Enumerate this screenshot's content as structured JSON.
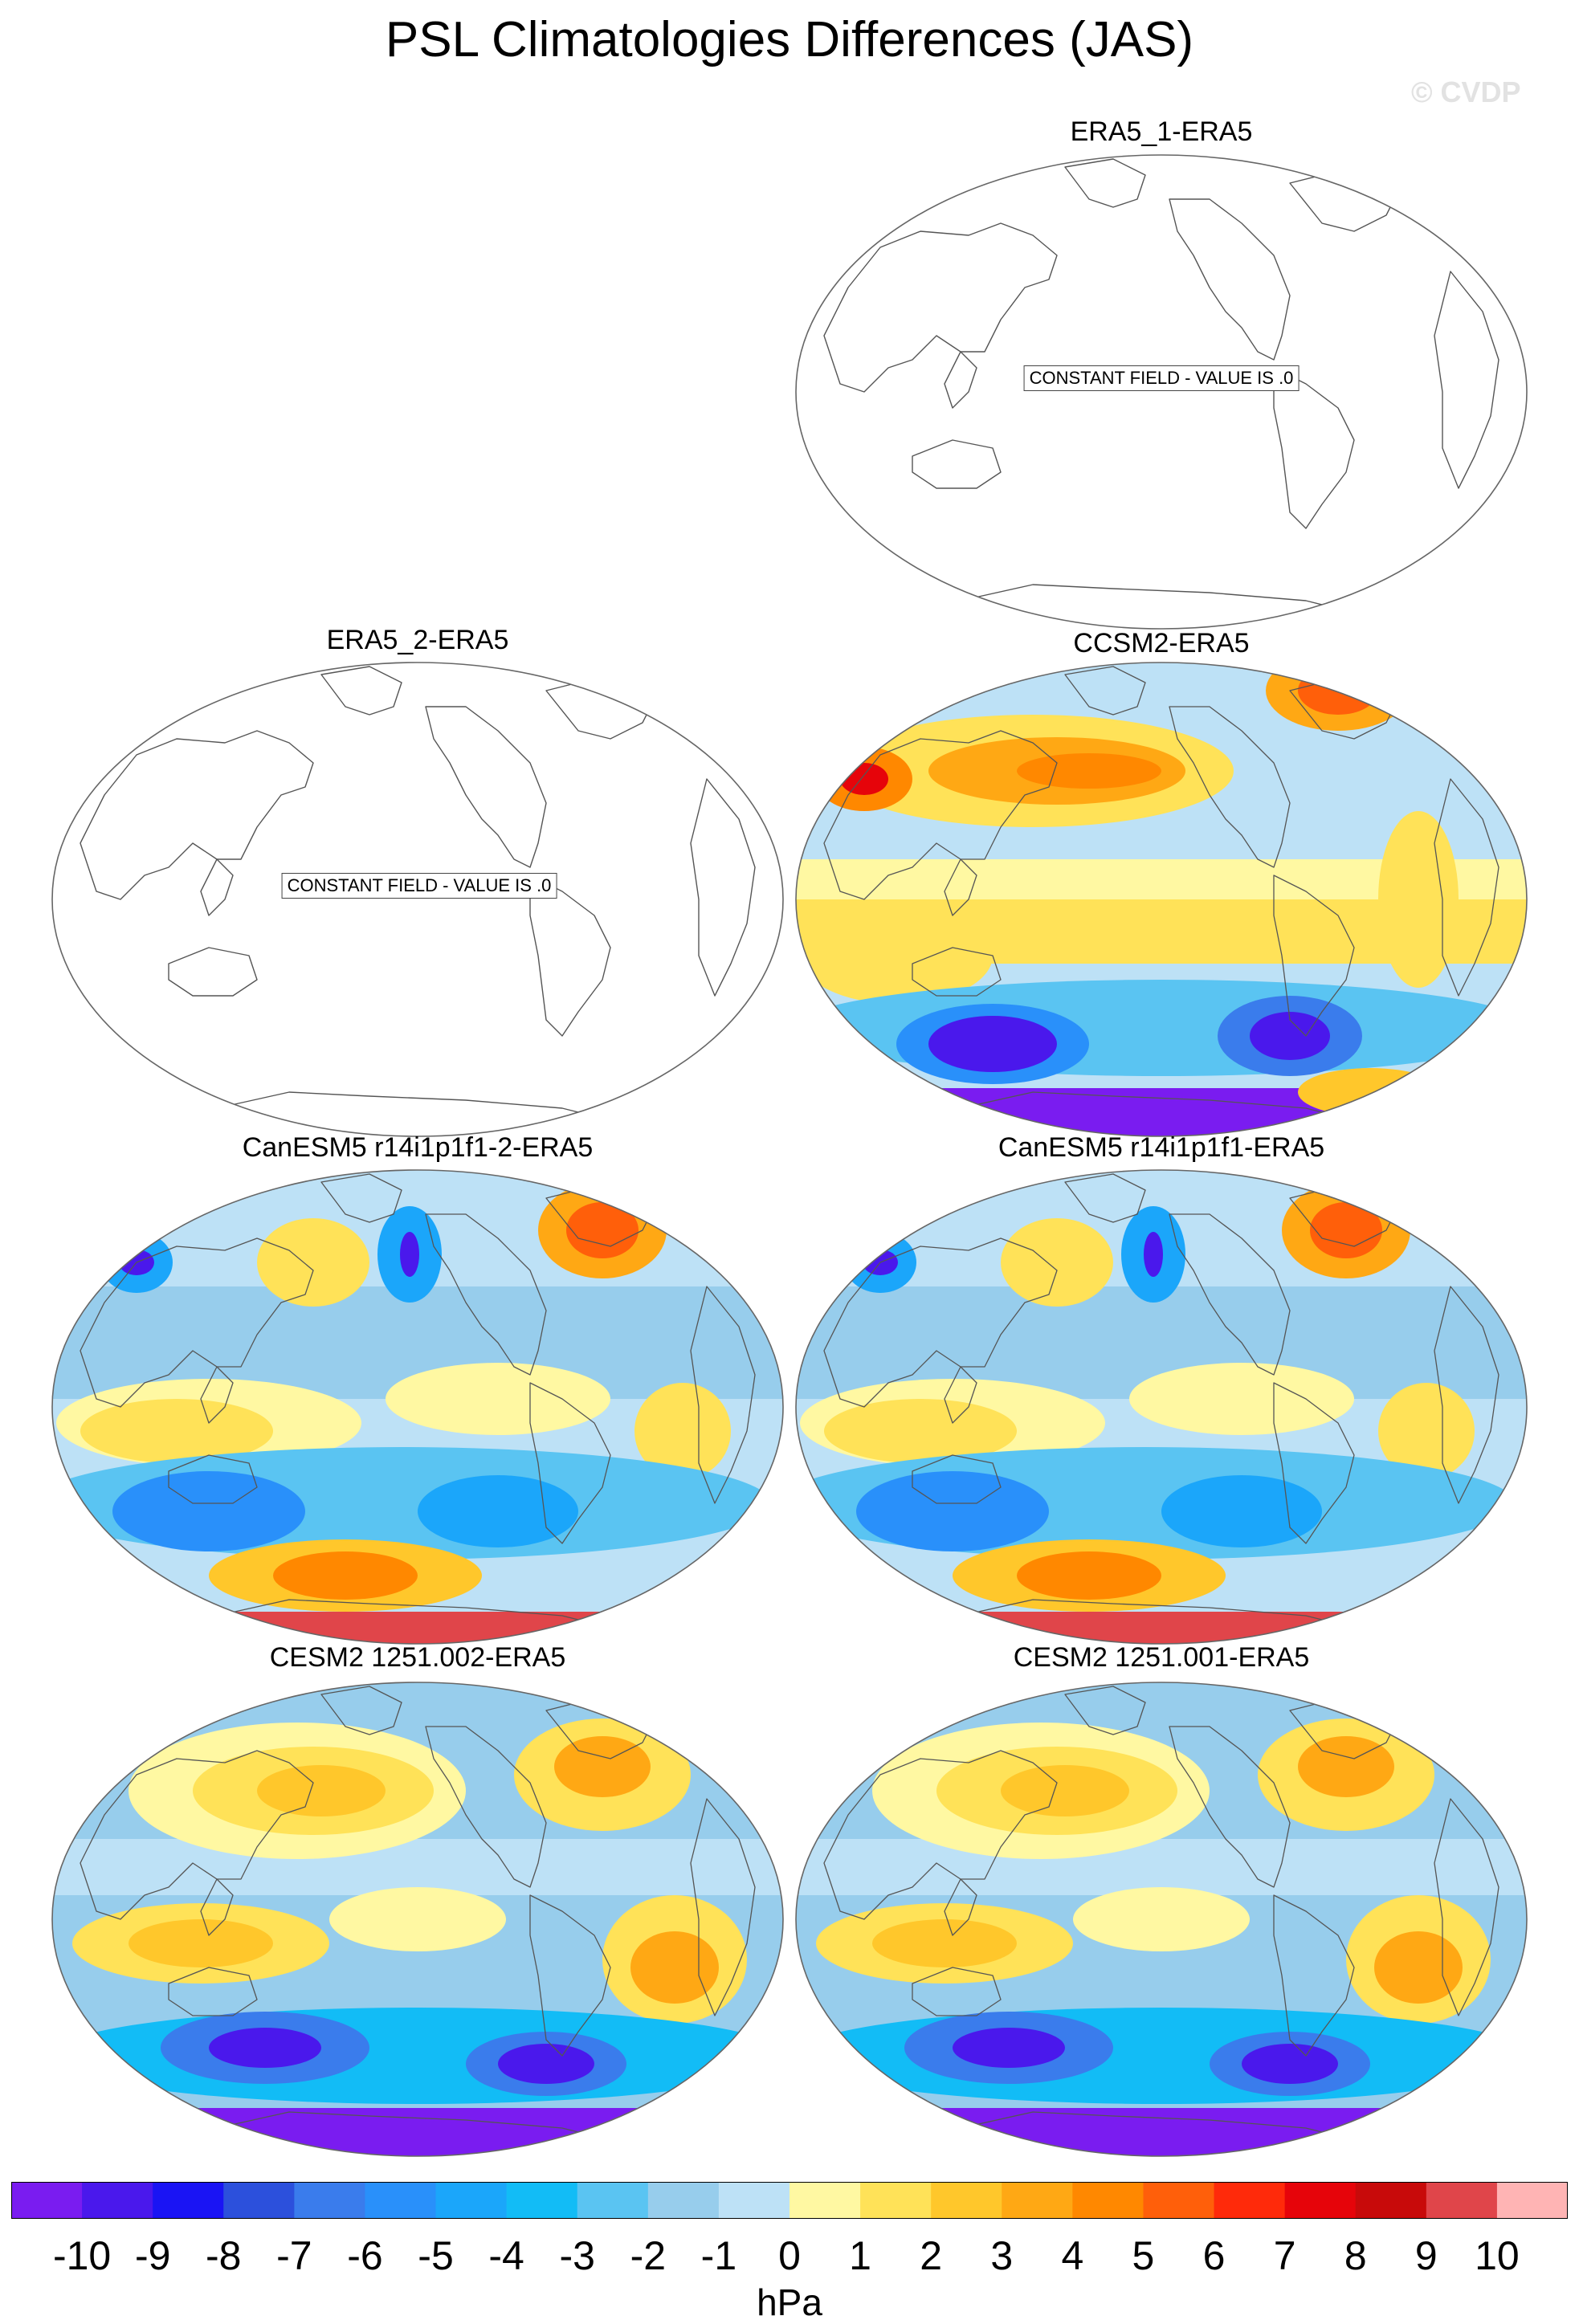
{
  "title": "PSL Climatologies Differences (JAS)",
  "watermark": "© CVDP",
  "colorbar": {
    "units": "hPa",
    "tick_labels": [
      "-10",
      "-9",
      "-8",
      "-7",
      "-6",
      "-5",
      "-4",
      "-3",
      "-2",
      "-1",
      "0",
      "1",
      "2",
      "3",
      "4",
      "5",
      "6",
      "7",
      "8",
      "9",
      "10"
    ],
    "colors": [
      "#7a1cf0",
      "#4a18ec",
      "#1a14f4",
      "#2c50dc",
      "#3a7cec",
      "#2990fa",
      "#1ba6fa",
      "#12bcf6",
      "#5ac4f2",
      "#97cdec",
      "#bde1f6",
      "#fff8a2",
      "#ffe258",
      "#ffc72b",
      "#ffa814",
      "#ff8800",
      "#ff5f0a",
      "#ff2a0a",
      "#e6040a",
      "#c80a0a",
      "#e0454a",
      "#ffb4b4"
    ]
  },
  "panels": [
    {
      "id": "era5-1",
      "title": "ERA5_1-ERA5",
      "constant_label": "CONSTANT FIELD - VALUE IS .0",
      "pattern": "none"
    },
    {
      "id": "era5-2",
      "title": "ERA5_2-ERA5",
      "constant_label": "CONSTANT FIELD - VALUE IS .0",
      "pattern": "none"
    },
    {
      "id": "ccsm2",
      "title": "CCSM2-ERA5",
      "pattern": "ccsm2"
    },
    {
      "id": "canesm5-2",
      "title": "CanESM5 r14i1p1f1-2-ERA5",
      "pattern": "canesm"
    },
    {
      "id": "canesm5",
      "title": "CanESM5 r14i1p1f1-ERA5",
      "pattern": "canesm"
    },
    {
      "id": "cesm2-002",
      "title": "CESM2 1251.002-ERA5",
      "pattern": "cesm"
    },
    {
      "id": "cesm2-001",
      "title": "CESM2 1251.001-ERA5",
      "pattern": "cesm"
    }
  ]
}
